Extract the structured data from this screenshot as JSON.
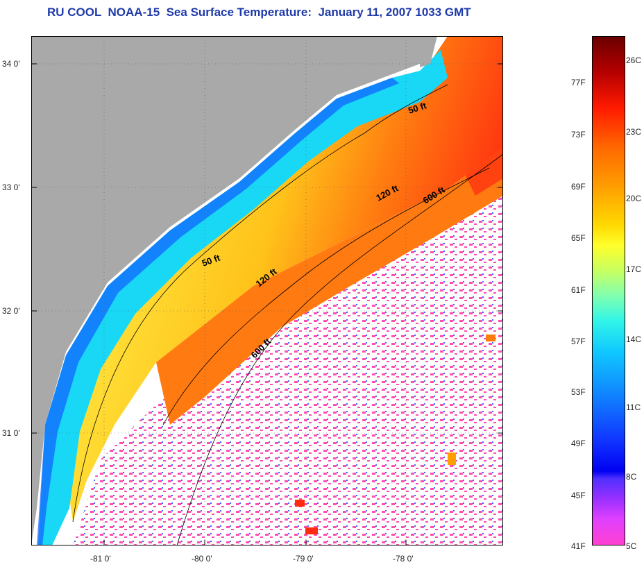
{
  "title": "RU COOL  NOAA-15  Sea Surface Temperature:  January 11, 2007 1033 GMT",
  "map": {
    "type": "sea-surface-temperature",
    "region": "South Atlantic Bight",
    "lat_labels": [
      "34 0'",
      "33 0'",
      "32 0'",
      "31 0'"
    ],
    "lon_labels": [
      "-81 0'",
      "-80 0'",
      "-79 0'",
      "-78 0'"
    ],
    "isobath_labels": [
      "50 ft",
      "120 ft",
      "600 ft",
      "50 ft",
      "120 ft",
      "600 ft"
    ],
    "colors": {
      "land": "#a9a9a9",
      "no_data": "#ffffff",
      "coast_cyan": "#19d8f5",
      "mid_yellow": "#ffe23a",
      "warm_orange": "#ff7a10",
      "cloud_magenta": "#ff3aa8",
      "frame": "#000000"
    }
  },
  "colorbar": {
    "fahrenheit": [
      "77F",
      "73F",
      "69F",
      "65F",
      "61F",
      "57F",
      "53F",
      "49F",
      "45F",
      "41F"
    ],
    "celsius": [
      "26C",
      "23C",
      "20C",
      "17C",
      "14C",
      "11C",
      "8C",
      "5C"
    ]
  }
}
